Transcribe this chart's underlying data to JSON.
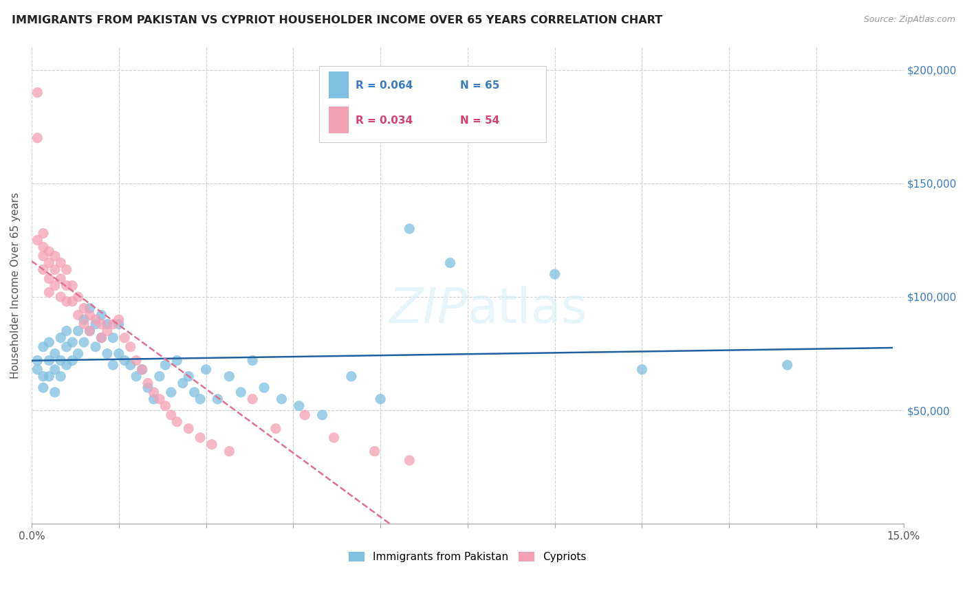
{
  "title": "IMMIGRANTS FROM PAKISTAN VS CYPRIOT HOUSEHOLDER INCOME OVER 65 YEARS CORRELATION CHART",
  "source": "Source: ZipAtlas.com",
  "ylabel": "Householder Income Over 65 years",
  "xlim": [
    0.0,
    0.15
  ],
  "ylim": [
    0,
    210000
  ],
  "xticks": [
    0.0,
    0.015,
    0.03,
    0.045,
    0.06,
    0.075,
    0.09,
    0.105,
    0.12,
    0.135,
    0.15
  ],
  "xtick_labels": [
    "0.0%",
    "",
    "",
    "",
    "",
    "",
    "",
    "",
    "",
    "",
    "15.0%"
  ],
  "ytick_positions": [
    0,
    50000,
    100000,
    150000,
    200000
  ],
  "ytick_labels": [
    "",
    "$50,000",
    "$100,000",
    "$150,000",
    "$200,000"
  ],
  "legend_r1": "R = 0.064",
  "legend_n1": "N = 65",
  "legend_r2": "R = 0.034",
  "legend_n2": "N = 54",
  "color_blue": "#7fbfdf",
  "color_pink": "#f4a0b5",
  "color_blue_text": "#3a7bbf",
  "color_pink_text": "#d44070",
  "color_blue_line": "#2060a0",
  "color_pink_line": "#e07090",
  "pakistan_x": [
    0.001,
    0.001,
    0.002,
    0.002,
    0.002,
    0.003,
    0.003,
    0.003,
    0.004,
    0.004,
    0.004,
    0.005,
    0.005,
    0.005,
    0.006,
    0.006,
    0.006,
    0.007,
    0.007,
    0.008,
    0.008,
    0.009,
    0.009,
    0.01,
    0.01,
    0.011,
    0.011,
    0.012,
    0.012,
    0.013,
    0.013,
    0.014,
    0.014,
    0.015,
    0.015,
    0.016,
    0.017,
    0.018,
    0.019,
    0.02,
    0.021,
    0.022,
    0.023,
    0.024,
    0.025,
    0.026,
    0.027,
    0.028,
    0.029,
    0.03,
    0.032,
    0.034,
    0.036,
    0.038,
    0.04,
    0.043,
    0.046,
    0.05,
    0.055,
    0.06,
    0.065,
    0.072,
    0.09,
    0.105,
    0.13
  ],
  "pakistan_y": [
    72000,
    68000,
    78000,
    65000,
    60000,
    80000,
    72000,
    65000,
    75000,
    68000,
    58000,
    82000,
    72000,
    65000,
    85000,
    78000,
    70000,
    80000,
    72000,
    85000,
    75000,
    90000,
    80000,
    95000,
    85000,
    88000,
    78000,
    92000,
    82000,
    88000,
    75000,
    82000,
    70000,
    88000,
    75000,
    72000,
    70000,
    65000,
    68000,
    60000,
    55000,
    65000,
    70000,
    58000,
    72000,
    62000,
    65000,
    58000,
    55000,
    68000,
    55000,
    65000,
    58000,
    72000,
    60000,
    55000,
    52000,
    48000,
    65000,
    55000,
    130000,
    115000,
    110000,
    68000,
    70000
  ],
  "cypriot_x": [
    0.001,
    0.001,
    0.001,
    0.002,
    0.002,
    0.002,
    0.002,
    0.003,
    0.003,
    0.003,
    0.003,
    0.004,
    0.004,
    0.004,
    0.005,
    0.005,
    0.005,
    0.006,
    0.006,
    0.006,
    0.007,
    0.007,
    0.008,
    0.008,
    0.009,
    0.009,
    0.01,
    0.01,
    0.011,
    0.012,
    0.012,
    0.013,
    0.014,
    0.015,
    0.016,
    0.017,
    0.018,
    0.019,
    0.02,
    0.021,
    0.022,
    0.023,
    0.024,
    0.025,
    0.027,
    0.029,
    0.031,
    0.034,
    0.038,
    0.042,
    0.047,
    0.052,
    0.059,
    0.065
  ],
  "cypriot_y": [
    190000,
    170000,
    125000,
    128000,
    122000,
    118000,
    112000,
    120000,
    115000,
    108000,
    102000,
    118000,
    112000,
    105000,
    115000,
    108000,
    100000,
    112000,
    105000,
    98000,
    105000,
    98000,
    100000,
    92000,
    95000,
    88000,
    92000,
    85000,
    90000,
    88000,
    82000,
    85000,
    88000,
    90000,
    82000,
    78000,
    72000,
    68000,
    62000,
    58000,
    55000,
    52000,
    48000,
    45000,
    42000,
    38000,
    35000,
    32000,
    55000,
    42000,
    48000,
    38000,
    32000,
    28000
  ]
}
